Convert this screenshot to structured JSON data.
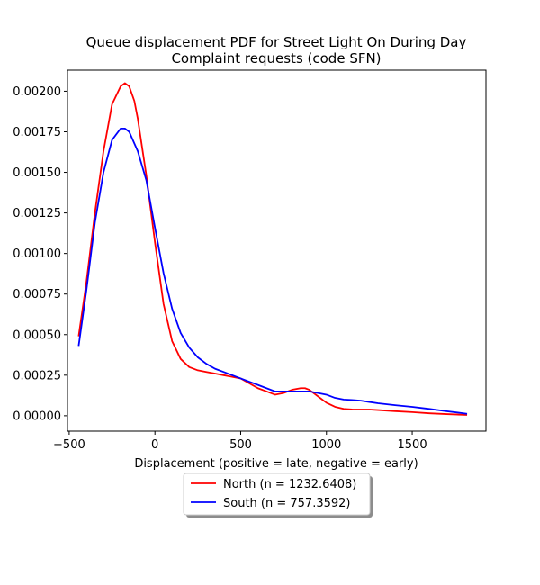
{
  "chart_data": {
    "type": "line",
    "title_line1": "Queue displacement PDF for Street Light On During Day",
    "title_line2": "Complaint  requests (code SFN)",
    "xlabel": "Displacement (positive = late, negative = early)",
    "ylabel": "",
    "xlim": [
      -510,
      1930
    ],
    "ylim": [
      -9.5e-05,
      0.00213
    ],
    "x_ticks": [
      -500,
      0,
      500,
      1000,
      1500
    ],
    "x_tick_labels": [
      "−500",
      "0",
      "500",
      "1000",
      "1500"
    ],
    "y_ticks": [
      0,
      0.00025,
      0.0005,
      0.00075,
      0.001,
      0.00125,
      0.0015,
      0.00175,
      0.002
    ],
    "y_tick_labels": [
      "0.00000",
      "0.00025",
      "0.00050",
      "0.00075",
      "0.00100",
      "0.00125",
      "0.00150",
      "0.00175",
      "0.00200"
    ],
    "grid": false,
    "legend_position": "below-center",
    "series": [
      {
        "name": "North (n = 1232.6408)",
        "color": "#ff0000",
        "x": [
          -445,
          -400,
          -350,
          -300,
          -250,
          -200,
          -175,
          -150,
          -120,
          -100,
          -50,
          0,
          50,
          100,
          150,
          200,
          250,
          300,
          350,
          400,
          450,
          500,
          550,
          600,
          650,
          700,
          750,
          800,
          850,
          875,
          900,
          950,
          1000,
          1050,
          1100,
          1150,
          1200,
          1250,
          1300,
          1400,
          1500,
          1600,
          1700,
          1820
        ],
        "y": [
          0.00049,
          0.00082,
          0.00125,
          0.00163,
          0.00192,
          0.00203,
          0.00205,
          0.00203,
          0.00194,
          0.00183,
          0.00148,
          0.00107,
          0.00069,
          0.00046,
          0.00035,
          0.0003,
          0.00028,
          0.00027,
          0.00026,
          0.00025,
          0.00024,
          0.00023,
          0.0002,
          0.00017,
          0.00015,
          0.00013,
          0.00014,
          0.00016,
          0.00017,
          0.00017,
          0.00016,
          0.00012,
          8e-05,
          5.5e-05,
          4.2e-05,
          3.9e-05,
          3.8e-05,
          3.8e-05,
          3.5e-05,
          2.8e-05,
          2.2e-05,
          1.5e-05,
          1e-05,
          5e-06
        ]
      },
      {
        "name": "South (n = 757.3592)",
        "color": "#0000ff",
        "x": [
          -445,
          -400,
          -350,
          -300,
          -250,
          -200,
          -175,
          -150,
          -100,
          -50,
          0,
          50,
          100,
          150,
          200,
          250,
          300,
          350,
          400,
          450,
          500,
          550,
          600,
          650,
          700,
          750,
          800,
          850,
          900,
          950,
          1000,
          1050,
          1100,
          1150,
          1200,
          1250,
          1300,
          1400,
          1500,
          1600,
          1700,
          1820
        ],
        "y": [
          0.00043,
          0.00077,
          0.00119,
          0.0015,
          0.0017,
          0.00177,
          0.00177,
          0.00175,
          0.00163,
          0.00145,
          0.00116,
          0.00088,
          0.00066,
          0.00051,
          0.00042,
          0.00036,
          0.00032,
          0.00029,
          0.00027,
          0.00025,
          0.00023,
          0.00021,
          0.00019,
          0.00017,
          0.00015,
          0.00015,
          0.00015,
          0.00015,
          0.00015,
          0.00014,
          0.00013,
          0.00011,
          0.0001,
          9.7e-05,
          9.3e-05,
          8.5e-05,
          7.7e-05,
          6.5e-05,
          5.5e-05,
          4.2e-05,
          2.8e-05,
          1.2e-05
        ]
      }
    ]
  }
}
